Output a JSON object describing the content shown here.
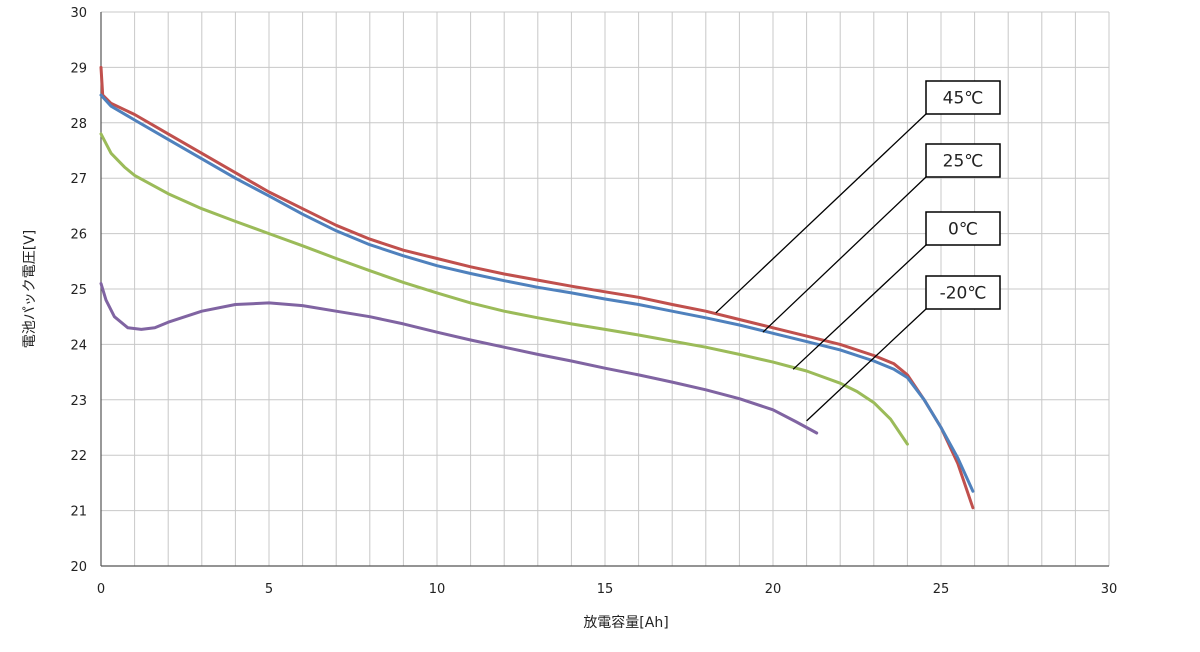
{
  "chart_data": {
    "type": "line",
    "xlabel": "放電容量[Ah]",
    "ylabel": "電池パック電圧[V]",
    "xlim": [
      0,
      30
    ],
    "ylim": [
      20,
      30
    ],
    "x_ticks": [
      0,
      5,
      10,
      15,
      20,
      25,
      30
    ],
    "y_ticks": [
      20,
      21,
      22,
      23,
      24,
      25,
      26,
      27,
      28,
      29,
      30
    ],
    "grid": true,
    "legend_placement": "callout labels at right",
    "series": [
      {
        "name": "45℃",
        "color": "#c0504d",
        "points": [
          [
            0,
            29.0
          ],
          [
            0.05,
            28.5
          ],
          [
            0.3,
            28.35
          ],
          [
            1,
            28.15
          ],
          [
            2,
            27.8
          ],
          [
            3,
            27.45
          ],
          [
            4,
            27.1
          ],
          [
            5,
            26.75
          ],
          [
            6,
            26.45
          ],
          [
            7,
            26.15
          ],
          [
            8,
            25.9
          ],
          [
            9,
            25.7
          ],
          [
            10,
            25.55
          ],
          [
            11,
            25.4
          ],
          [
            12,
            25.27
          ],
          [
            13,
            25.16
          ],
          [
            14,
            25.05
          ],
          [
            15,
            24.95
          ],
          [
            16,
            24.85
          ],
          [
            17,
            24.72
          ],
          [
            18,
            24.6
          ],
          [
            19,
            24.45
          ],
          [
            20,
            24.3
          ],
          [
            21,
            24.15
          ],
          [
            22,
            24.0
          ],
          [
            23,
            23.8
          ],
          [
            23.6,
            23.65
          ],
          [
            24,
            23.45
          ],
          [
            24.5,
            23.0
          ],
          [
            25,
            22.5
          ],
          [
            25.5,
            21.85
          ],
          [
            25.95,
            21.05
          ]
        ]
      },
      {
        "name": "25℃",
        "color": "#4f81bd",
        "points": [
          [
            0,
            28.5
          ],
          [
            0.3,
            28.3
          ],
          [
            1,
            28.05
          ],
          [
            2,
            27.7
          ],
          [
            3,
            27.35
          ],
          [
            4,
            27.0
          ],
          [
            5,
            26.68
          ],
          [
            6,
            26.35
          ],
          [
            7,
            26.05
          ],
          [
            8,
            25.8
          ],
          [
            9,
            25.6
          ],
          [
            10,
            25.42
          ],
          [
            11,
            25.28
          ],
          [
            12,
            25.15
          ],
          [
            13,
            25.03
          ],
          [
            14,
            24.93
          ],
          [
            15,
            24.82
          ],
          [
            16,
            24.72
          ],
          [
            17,
            24.6
          ],
          [
            18,
            24.48
          ],
          [
            19,
            24.35
          ],
          [
            20,
            24.2
          ],
          [
            21,
            24.05
          ],
          [
            22,
            23.9
          ],
          [
            23,
            23.7
          ],
          [
            23.6,
            23.55
          ],
          [
            24,
            23.4
          ],
          [
            24.5,
            23.0
          ],
          [
            25,
            22.5
          ],
          [
            25.5,
            21.95
          ],
          [
            25.95,
            21.35
          ]
        ]
      },
      {
        "name": "0℃",
        "color": "#9bbb59",
        "points": [
          [
            0,
            27.8
          ],
          [
            0.3,
            27.45
          ],
          [
            0.7,
            27.2
          ],
          [
            1,
            27.05
          ],
          [
            2,
            26.72
          ],
          [
            3,
            26.45
          ],
          [
            4,
            26.22
          ],
          [
            5,
            26.0
          ],
          [
            6,
            25.78
          ],
          [
            7,
            25.55
          ],
          [
            8,
            25.33
          ],
          [
            9,
            25.12
          ],
          [
            10,
            24.93
          ],
          [
            11,
            24.75
          ],
          [
            12,
            24.6
          ],
          [
            13,
            24.48
          ],
          [
            14,
            24.37
          ],
          [
            15,
            24.27
          ],
          [
            16,
            24.17
          ],
          [
            17,
            24.06
          ],
          [
            18,
            23.95
          ],
          [
            19,
            23.82
          ],
          [
            20,
            23.68
          ],
          [
            21,
            23.52
          ],
          [
            22,
            23.3
          ],
          [
            22.5,
            23.15
          ],
          [
            23,
            22.95
          ],
          [
            23.5,
            22.65
          ],
          [
            24,
            22.2
          ]
        ]
      },
      {
        "name": "-20℃",
        "color": "#8064a2",
        "points": [
          [
            0,
            25.1
          ],
          [
            0.15,
            24.8
          ],
          [
            0.4,
            24.5
          ],
          [
            0.8,
            24.3
          ],
          [
            1.2,
            24.27
          ],
          [
            1.6,
            24.3
          ],
          [
            2,
            24.4
          ],
          [
            3,
            24.6
          ],
          [
            4,
            24.72
          ],
          [
            5,
            24.75
          ],
          [
            6,
            24.7
          ],
          [
            7,
            24.6
          ],
          [
            8,
            24.5
          ],
          [
            9,
            24.37
          ],
          [
            10,
            24.22
          ],
          [
            11,
            24.08
          ],
          [
            12,
            23.95
          ],
          [
            13,
            23.82
          ],
          [
            14,
            23.7
          ],
          [
            15,
            23.57
          ],
          [
            16,
            23.45
          ],
          [
            17,
            23.32
          ],
          [
            18,
            23.18
          ],
          [
            19,
            23.02
          ],
          [
            20,
            22.82
          ],
          [
            20.7,
            22.6
          ],
          [
            21.3,
            22.4
          ]
        ]
      }
    ]
  }
}
